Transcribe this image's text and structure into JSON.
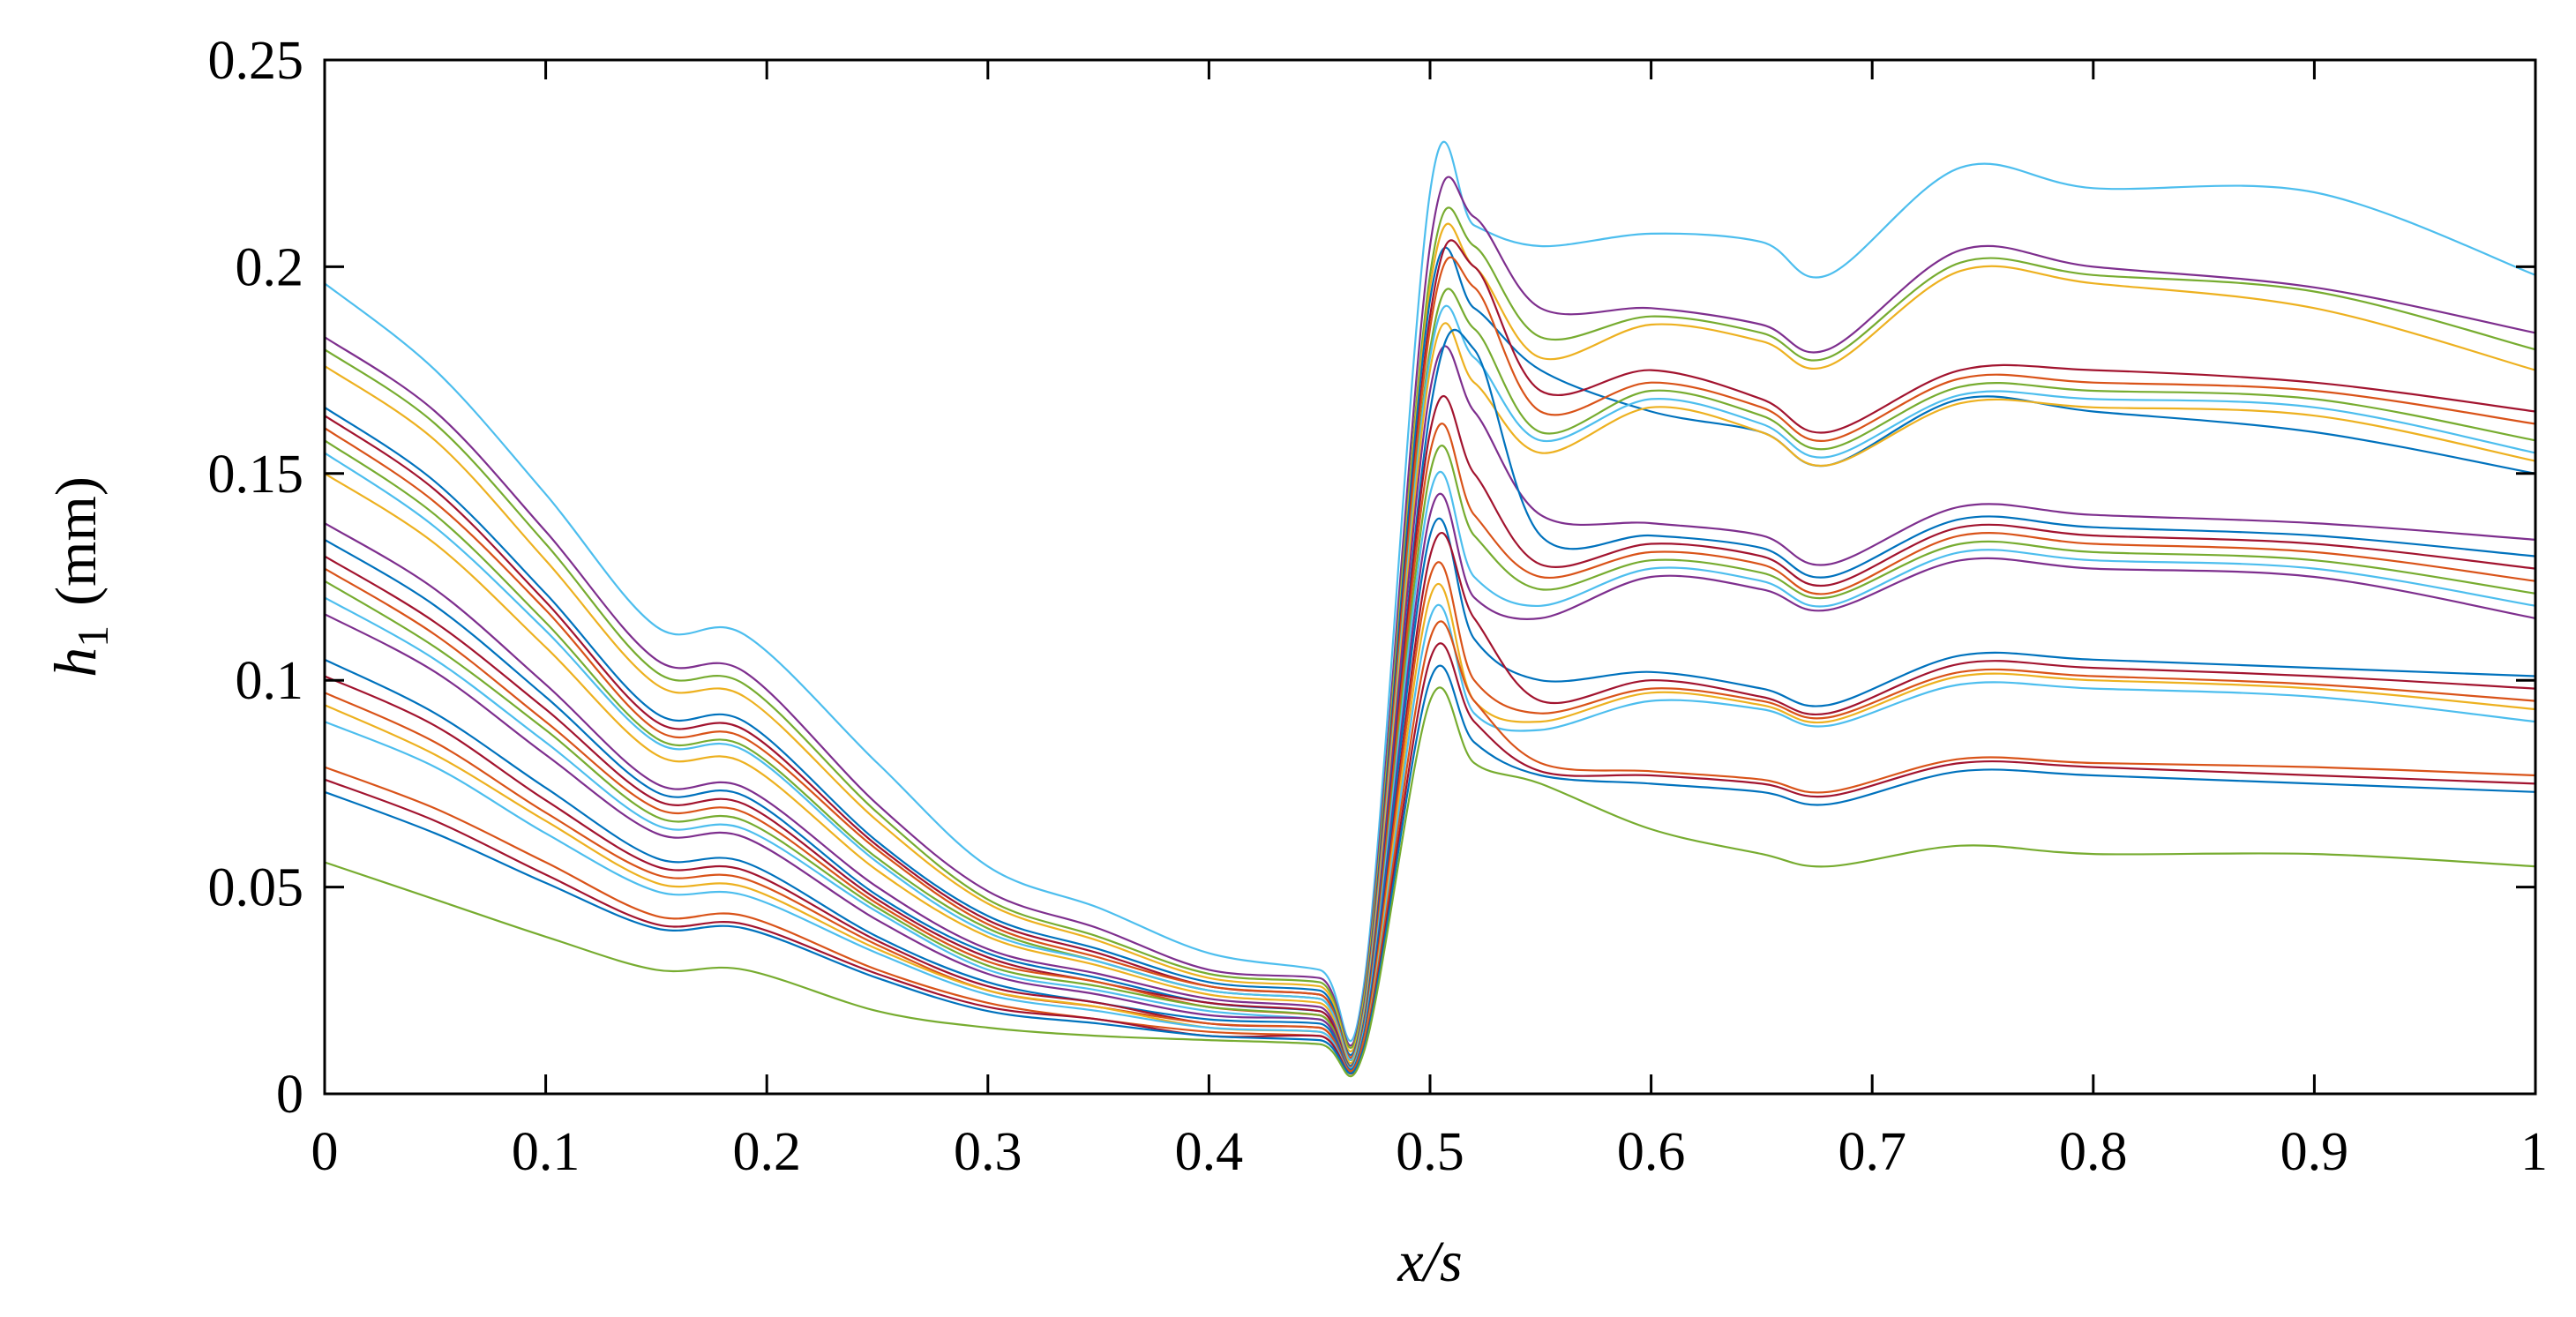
{
  "chart_data": {
    "type": "line",
    "title": "",
    "xlabel": "x/s",
    "ylabel": {
      "main": "h",
      "sub": "1",
      "unit": "(mm)"
    },
    "xlim": [
      0,
      1
    ],
    "ylim": [
      0,
      0.25
    ],
    "xticks": [
      0,
      0.1,
      0.2,
      0.3,
      0.4,
      0.5,
      0.6,
      0.7,
      0.8,
      0.9,
      1
    ],
    "xtick_labels": [
      "0",
      "0.1",
      "0.2",
      "0.3",
      "0.4",
      "0.5",
      "0.6",
      "0.7",
      "0.8",
      "0.9",
      "1"
    ],
    "yticks": [
      0,
      0.05,
      0.1,
      0.15,
      0.2,
      0.25
    ],
    "ytick_labels": [
      "0",
      "0.05",
      "0.1",
      "0.15",
      "0.2",
      "0.25"
    ],
    "grid": false,
    "legend": "none",
    "x": [
      0,
      0.05,
      0.1,
      0.15,
      0.19,
      0.25,
      0.3,
      0.35,
      0.4,
      0.45,
      0.47,
      0.5,
      0.52,
      0.55,
      0.6,
      0.65,
      0.68,
      0.74,
      0.8,
      0.9,
      1
    ],
    "series": [
      {
        "color": "#4dbeee",
        "values": [
          0.196,
          0.175,
          0.145,
          0.113,
          0.111,
          0.08,
          0.055,
          0.045,
          0.034,
          0.03,
          0.026,
          0.218,
          0.21,
          0.205,
          0.208,
          0.206,
          0.198,
          0.224,
          0.219,
          0.218,
          0.198
        ]
      },
      {
        "color": "#7e2f8e",
        "values": [
          0.183,
          0.165,
          0.136,
          0.105,
          0.102,
          0.07,
          0.049,
          0.04,
          0.03,
          0.028,
          0.024,
          0.205,
          0.212,
          0.19,
          0.19,
          0.186,
          0.18,
          0.204,
          0.2,
          0.195,
          0.184
        ]
      },
      {
        "color": "#77ac30",
        "values": [
          0.18,
          0.162,
          0.133,
          0.102,
          0.099,
          0.068,
          0.047,
          0.038,
          0.029,
          0.027,
          0.023,
          0.198,
          0.205,
          0.183,
          0.188,
          0.184,
          0.178,
          0.201,
          0.198,
          0.194,
          0.18
        ]
      },
      {
        "color": "#edb120",
        "values": [
          0.176,
          0.158,
          0.129,
          0.099,
          0.096,
          0.066,
          0.046,
          0.037,
          0.028,
          0.026,
          0.022,
          0.195,
          0.2,
          0.178,
          0.186,
          0.182,
          0.176,
          0.199,
          0.196,
          0.19,
          0.175
        ]
      },
      {
        "color": "#0072bd",
        "values": [
          0.166,
          0.148,
          0.121,
          0.092,
          0.09,
          0.061,
          0.043,
          0.035,
          0.027,
          0.025,
          0.021,
          0.192,
          0.19,
          0.175,
          0.165,
          0.16,
          0.152,
          0.168,
          0.165,
          0.16,
          0.15
        ]
      },
      {
        "color": "#a2142f",
        "values": [
          0.164,
          0.146,
          0.119,
          0.09,
          0.088,
          0.06,
          0.042,
          0.034,
          0.026,
          0.024,
          0.02,
          0.188,
          0.2,
          0.17,
          0.175,
          0.168,
          0.16,
          0.175,
          0.175,
          0.172,
          0.165
        ]
      },
      {
        "color": "#d95319",
        "values": [
          0.161,
          0.143,
          0.117,
          0.088,
          0.086,
          0.059,
          0.041,
          0.033,
          0.026,
          0.024,
          0.02,
          0.185,
          0.195,
          0.165,
          0.172,
          0.166,
          0.158,
          0.173,
          0.172,
          0.17,
          0.162
        ]
      },
      {
        "color": "#77ac30",
        "values": [
          0.158,
          0.14,
          0.114,
          0.086,
          0.084,
          0.057,
          0.04,
          0.032,
          0.025,
          0.023,
          0.019,
          0.18,
          0.185,
          0.16,
          0.17,
          0.164,
          0.156,
          0.171,
          0.17,
          0.168,
          0.158
        ]
      },
      {
        "color": "#4dbeee",
        "values": [
          0.155,
          0.137,
          0.112,
          0.085,
          0.083,
          0.056,
          0.039,
          0.032,
          0.025,
          0.023,
          0.019,
          0.178,
          0.178,
          0.158,
          0.168,
          0.162,
          0.154,
          0.169,
          0.168,
          0.166,
          0.155
        ]
      },
      {
        "color": "#edb120",
        "values": [
          0.15,
          0.133,
          0.108,
          0.082,
          0.08,
          0.054,
          0.038,
          0.031,
          0.024,
          0.022,
          0.018,
          0.175,
          0.172,
          0.155,
          0.166,
          0.16,
          0.152,
          0.167,
          0.166,
          0.164,
          0.153
        ]
      },
      {
        "color": "#7e2f8e",
        "values": [
          0.138,
          0.122,
          0.099,
          0.075,
          0.074,
          0.05,
          0.035,
          0.029,
          0.023,
          0.021,
          0.017,
          0.17,
          0.165,
          0.14,
          0.138,
          0.135,
          0.128,
          0.142,
          0.14,
          0.138,
          0.134
        ]
      },
      {
        "color": "#0072bd",
        "values": [
          0.134,
          0.118,
          0.096,
          0.073,
          0.072,
          0.048,
          0.034,
          0.028,
          0.022,
          0.02,
          0.017,
          0.165,
          0.18,
          0.135,
          0.135,
          0.132,
          0.125,
          0.139,
          0.137,
          0.135,
          0.13
        ]
      },
      {
        "color": "#a2142f",
        "values": [
          0.13,
          0.114,
          0.093,
          0.071,
          0.07,
          0.047,
          0.033,
          0.027,
          0.022,
          0.02,
          0.016,
          0.16,
          0.15,
          0.128,
          0.133,
          0.13,
          0.123,
          0.137,
          0.135,
          0.133,
          0.127
        ]
      },
      {
        "color": "#d95319",
        "values": [
          0.127,
          0.111,
          0.09,
          0.069,
          0.068,
          0.046,
          0.032,
          0.027,
          0.021,
          0.019,
          0.016,
          0.155,
          0.14,
          0.125,
          0.131,
          0.128,
          0.121,
          0.135,
          0.133,
          0.131,
          0.124
        ]
      },
      {
        "color": "#77ac30",
        "values": [
          0.124,
          0.108,
          0.088,
          0.067,
          0.066,
          0.045,
          0.031,
          0.026,
          0.021,
          0.019,
          0.015,
          0.15,
          0.135,
          0.122,
          0.129,
          0.126,
          0.12,
          0.133,
          0.131,
          0.129,
          0.121
        ]
      },
      {
        "color": "#4dbeee",
        "values": [
          0.12,
          0.105,
          0.085,
          0.065,
          0.064,
          0.044,
          0.03,
          0.025,
          0.02,
          0.018,
          0.015,
          0.145,
          0.125,
          0.118,
          0.127,
          0.124,
          0.118,
          0.131,
          0.129,
          0.127,
          0.118
        ]
      },
      {
        "color": "#7e2f8e",
        "values": [
          0.116,
          0.102,
          0.082,
          0.063,
          0.062,
          0.042,
          0.029,
          0.024,
          0.019,
          0.018,
          0.014,
          0.14,
          0.12,
          0.115,
          0.125,
          0.122,
          0.117,
          0.129,
          0.127,
          0.125,
          0.115
        ]
      },
      {
        "color": "#0072bd",
        "values": [
          0.105,
          0.092,
          0.074,
          0.057,
          0.056,
          0.038,
          0.027,
          0.022,
          0.018,
          0.017,
          0.014,
          0.135,
          0.11,
          0.1,
          0.102,
          0.098,
          0.094,
          0.106,
          0.105,
          0.103,
          0.101
        ]
      },
      {
        "color": "#a2142f",
        "values": [
          0.101,
          0.089,
          0.071,
          0.055,
          0.054,
          0.037,
          0.026,
          0.022,
          0.017,
          0.016,
          0.013,
          0.13,
          0.115,
          0.095,
          0.1,
          0.096,
          0.092,
          0.104,
          0.103,
          0.101,
          0.098
        ]
      },
      {
        "color": "#d95319",
        "values": [
          0.097,
          0.085,
          0.068,
          0.053,
          0.052,
          0.036,
          0.025,
          0.021,
          0.017,
          0.016,
          0.013,
          0.125,
          0.1,
          0.092,
          0.098,
          0.095,
          0.091,
          0.102,
          0.101,
          0.099,
          0.095
        ]
      },
      {
        "color": "#edb120",
        "values": [
          0.094,
          0.082,
          0.066,
          0.051,
          0.05,
          0.035,
          0.025,
          0.021,
          0.016,
          0.015,
          0.012,
          0.12,
          0.095,
          0.09,
          0.097,
          0.094,
          0.09,
          0.101,
          0.1,
          0.098,
          0.093
        ]
      },
      {
        "color": "#4dbeee",
        "values": [
          0.09,
          0.079,
          0.063,
          0.049,
          0.048,
          0.034,
          0.024,
          0.02,
          0.016,
          0.015,
          0.012,
          0.115,
          0.092,
          0.088,
          0.095,
          0.093,
          0.089,
          0.099,
          0.098,
          0.096,
          0.09
        ]
      },
      {
        "color": "#d95319",
        "values": [
          0.079,
          0.069,
          0.056,
          0.043,
          0.043,
          0.03,
          0.022,
          0.018,
          0.015,
          0.014,
          0.012,
          0.11,
          0.095,
          0.08,
          0.078,
          0.076,
          0.073,
          0.081,
          0.08,
          0.079,
          0.077
        ]
      },
      {
        "color": "#a2142f",
        "values": [
          0.076,
          0.066,
          0.053,
          0.041,
          0.041,
          0.029,
          0.021,
          0.018,
          0.014,
          0.014,
          0.011,
          0.105,
          0.09,
          0.078,
          0.077,
          0.075,
          0.072,
          0.08,
          0.079,
          0.077,
          0.075
        ]
      },
      {
        "color": "#0072bd",
        "values": [
          0.073,
          0.063,
          0.051,
          0.04,
          0.04,
          0.028,
          0.02,
          0.017,
          0.014,
          0.013,
          0.011,
          0.1,
          0.085,
          0.077,
          0.075,
          0.073,
          0.07,
          0.078,
          0.077,
          0.075,
          0.073
        ]
      },
      {
        "color": "#77ac30",
        "values": [
          0.056,
          0.047,
          0.038,
          0.03,
          0.03,
          0.02,
          0.016,
          0.014,
          0.013,
          0.012,
          0.01,
          0.095,
          0.08,
          0.075,
          0.064,
          0.058,
          0.055,
          0.06,
          0.058,
          0.058,
          0.055
        ]
      }
    ]
  }
}
